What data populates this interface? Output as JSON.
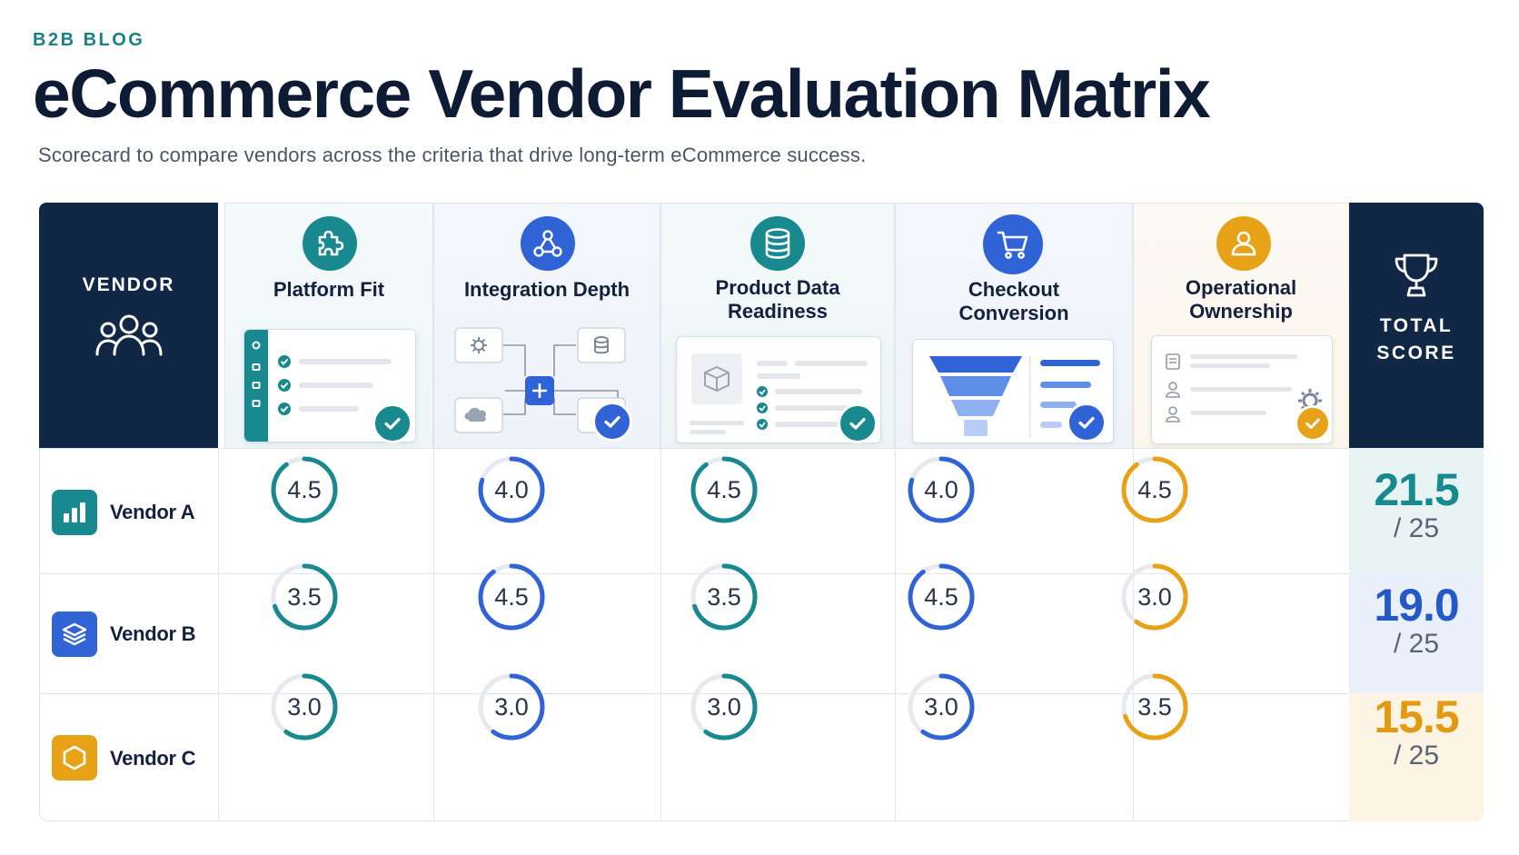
{
  "header": {
    "eyebrow": "B2B BLOG",
    "title": "eCommerce Vendor Evaluation Matrix",
    "subtitle": "Scorecard to compare vendors across the criteria that drive long-term eCommerce success."
  },
  "columns": {
    "vendor_label": "VENDOR",
    "total_label_line1": "TOTAL",
    "total_label_line2": "SCORE"
  },
  "criteria": [
    {
      "name_line1": "Platform Fit",
      "name_line2": "",
      "color": "#17898f",
      "icon": "puzzle-icon"
    },
    {
      "name_line1": "Integration Depth",
      "name_line2": "",
      "color": "#2f63d6",
      "icon": "network-icon"
    },
    {
      "name_line1": "Product Data",
      "name_line2": "Readiness",
      "color": "#17898f",
      "icon": "database-icon"
    },
    {
      "name_line1": "Checkout",
      "name_line2": "Conversion",
      "color": "#2f63d6",
      "icon": "cart-icon"
    },
    {
      "name_line1": "Operational",
      "name_line2": "Ownership",
      "color": "#e8a218",
      "icon": "user-icon"
    }
  ],
  "vendors": [
    {
      "name": "Vendor A",
      "logo": "bar-chart-logo",
      "logo_color": "#17898f",
      "scores": [
        "4.5",
        "4.0",
        "4.5",
        "4.0",
        "4.5"
      ],
      "total": "21.5",
      "total_denominator": "/ 25",
      "total_color": "#17898f",
      "total_bg": "#e7f4f3"
    },
    {
      "name": "Vendor B",
      "logo": "layers-logo",
      "logo_color": "#2f63d6",
      "scores": [
        "3.5",
        "4.5",
        "3.5",
        "4.5",
        "3.0"
      ],
      "total": "19.0",
      "total_denominator": "/ 25",
      "total_color": "#2559c9",
      "total_bg": "#eaf0fb"
    },
    {
      "name": "Vendor C",
      "logo": "hexagon-logo",
      "logo_color": "#e8a218",
      "scores": [
        "3.0",
        "3.0",
        "3.0",
        "3.0",
        "3.5"
      ],
      "total": "15.5",
      "total_denominator": "/ 25",
      "total_color": "#e29a12",
      "total_bg": "#fdf4e4"
    }
  ],
  "score_max": 5,
  "colors": {
    "navy": "#102846",
    "teal": "#17898f",
    "blue": "#2f63d6",
    "amber": "#e8a218",
    "track": "#e6e9ee"
  }
}
